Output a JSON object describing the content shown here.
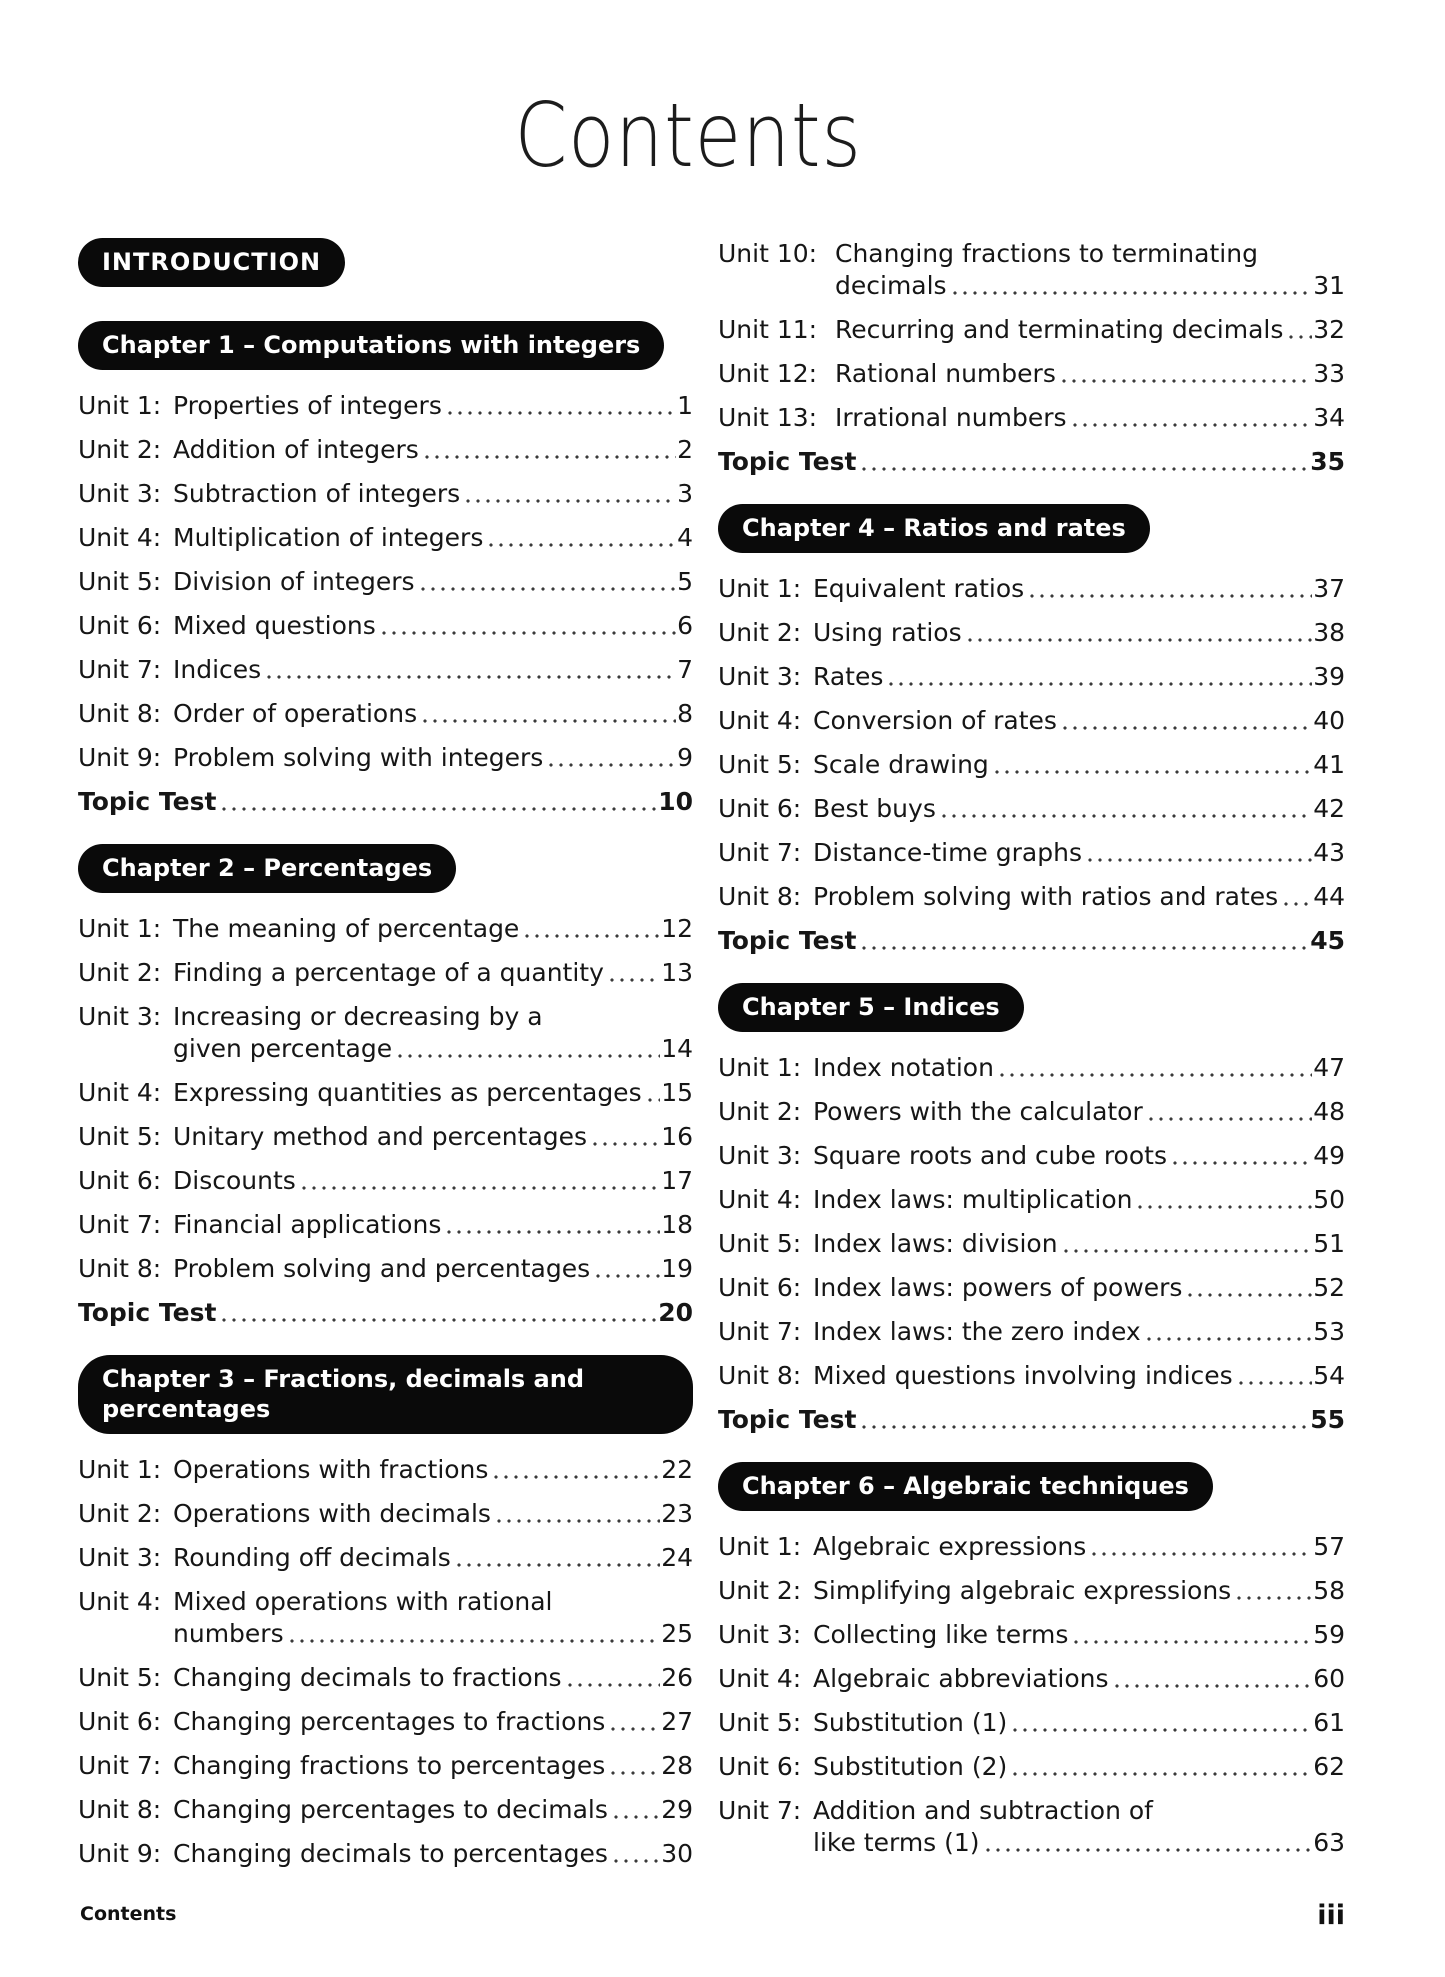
{
  "page": {
    "title": "Contents"
  },
  "footer": {
    "left": "Contents",
    "right": "iii"
  },
  "accent_color": "#0a0a0a",
  "columns": [
    {
      "blocks": [
        {
          "type": "pill",
          "style": "intro",
          "label": "INTRODUCTION"
        },
        {
          "type": "pill",
          "label": "Chapter 1 – Computations with integers"
        },
        {
          "type": "entries",
          "items": [
            {
              "label": "Unit 1:",
              "lines": [
                "Properties of integers"
              ],
              "page": "1"
            },
            {
              "label": "Unit 2:",
              "lines": [
                "Addition of integers"
              ],
              "page": "2"
            },
            {
              "label": "Unit 3:",
              "lines": [
                "Subtraction of integers"
              ],
              "page": "3"
            },
            {
              "label": "Unit 4:",
              "lines": [
                "Multiplication of integers"
              ],
              "page": "4"
            },
            {
              "label": "Unit 5:",
              "lines": [
                "Division of integers"
              ],
              "page": "5"
            },
            {
              "label": "Unit 6:",
              "lines": [
                "Mixed questions"
              ],
              "page": "6"
            },
            {
              "label": "Unit 7:",
              "lines": [
                "Indices"
              ],
              "page": "7"
            },
            {
              "label": "Unit 8:",
              "lines": [
                "Order of operations"
              ],
              "page": "8"
            },
            {
              "label": "Unit 9:",
              "lines": [
                "Problem solving with integers"
              ],
              "page": "9"
            },
            {
              "label": "",
              "lines": [
                "Topic Test"
              ],
              "page": "10",
              "bold": true
            }
          ]
        },
        {
          "type": "pill",
          "label": "Chapter 2 – Percentages"
        },
        {
          "type": "entries",
          "items": [
            {
              "label": "Unit 1:",
              "lines": [
                "The meaning of percentage"
              ],
              "page": "12"
            },
            {
              "label": "Unit 2:",
              "lines": [
                "Finding a percentage of a quantity"
              ],
              "page": "13"
            },
            {
              "label": "Unit 3:",
              "lines": [
                "Increasing or decreasing by a",
                "given percentage"
              ],
              "page": "14"
            },
            {
              "label": "Unit 4:",
              "lines": [
                "Expressing quantities as percentages"
              ],
              "page": "15"
            },
            {
              "label": "Unit 5:",
              "lines": [
                "Unitary method and percentages"
              ],
              "page": "16"
            },
            {
              "label": "Unit 6:",
              "lines": [
                "Discounts"
              ],
              "page": "17"
            },
            {
              "label": "Unit 7:",
              "lines": [
                "Financial applications"
              ],
              "page": "18"
            },
            {
              "label": "Unit 8:",
              "lines": [
                "Problem solving and percentages"
              ],
              "page": "19"
            },
            {
              "label": "",
              "lines": [
                "Topic Test"
              ],
              "page": "20",
              "bold": true
            }
          ]
        },
        {
          "type": "pill",
          "label": "Chapter 3 – Fractions, decimals and percentages"
        },
        {
          "type": "entries",
          "items": [
            {
              "label": "Unit 1:",
              "lines": [
                "Operations with fractions"
              ],
              "page": "22"
            },
            {
              "label": "Unit 2:",
              "lines": [
                "Operations with decimals"
              ],
              "page": "23"
            },
            {
              "label": "Unit 3:",
              "lines": [
                "Rounding off decimals"
              ],
              "page": "24"
            },
            {
              "label": "Unit 4:",
              "lines": [
                "Mixed operations with rational",
                "numbers"
              ],
              "page": "25"
            },
            {
              "label": "Unit 5:",
              "lines": [
                "Changing decimals to fractions"
              ],
              "page": "26"
            },
            {
              "label": "Unit 6:",
              "lines": [
                "Changing percentages to fractions"
              ],
              "page": "27"
            },
            {
              "label": "Unit 7:",
              "lines": [
                "Changing fractions to percentages"
              ],
              "page": "28"
            },
            {
              "label": "Unit 8:",
              "lines": [
                "Changing percentages to decimals"
              ],
              "page": "29"
            },
            {
              "label": "Unit 9:",
              "lines": [
                "Changing decimals to percentages"
              ],
              "page": "30"
            }
          ]
        }
      ]
    },
    {
      "blocks": [
        {
          "type": "entries",
          "items": [
            {
              "label": "Unit 10:",
              "lines": [
                "Changing fractions to terminating",
                "decimals"
              ],
              "page": "31"
            },
            {
              "label": "Unit 11:",
              "lines": [
                "Recurring and terminating decimals"
              ],
              "page": "32"
            },
            {
              "label": "Unit 12:",
              "lines": [
                "Rational numbers"
              ],
              "page": "33"
            },
            {
              "label": "Unit 13:",
              "lines": [
                "Irrational numbers"
              ],
              "page": "34"
            },
            {
              "label": "",
              "lines": [
                "Topic Test"
              ],
              "page": "35",
              "bold": true
            }
          ]
        },
        {
          "type": "pill",
          "label": "Chapter 4 – Ratios and rates"
        },
        {
          "type": "entries",
          "items": [
            {
              "label": "Unit 1:",
              "lines": [
                "Equivalent ratios"
              ],
              "page": "37"
            },
            {
              "label": "Unit 2:",
              "lines": [
                "Using ratios"
              ],
              "page": "38"
            },
            {
              "label": "Unit 3:",
              "lines": [
                "Rates"
              ],
              "page": "39"
            },
            {
              "label": "Unit 4:",
              "lines": [
                "Conversion of rates"
              ],
              "page": "40"
            },
            {
              "label": "Unit 5:",
              "lines": [
                "Scale drawing"
              ],
              "page": "41"
            },
            {
              "label": "Unit 6:",
              "lines": [
                "Best buys"
              ],
              "page": "42"
            },
            {
              "label": "Unit 7:",
              "lines": [
                "Distance-time graphs"
              ],
              "page": "43"
            },
            {
              "label": "Unit 8:",
              "lines": [
                "Problem solving with ratios and rates"
              ],
              "page": "44"
            },
            {
              "label": "",
              "lines": [
                "Topic Test"
              ],
              "page": "45",
              "bold": true
            }
          ]
        },
        {
          "type": "pill",
          "label": "Chapter 5 – Indices"
        },
        {
          "type": "entries",
          "items": [
            {
              "label": "Unit 1:",
              "lines": [
                "Index notation"
              ],
              "page": "47"
            },
            {
              "label": "Unit 2:",
              "lines": [
                "Powers with the calculator"
              ],
              "page": "48"
            },
            {
              "label": "Unit 3:",
              "lines": [
                "Square roots and cube roots"
              ],
              "page": "49"
            },
            {
              "label": "Unit 4:",
              "lines": [
                "Index laws: multiplication"
              ],
              "page": "50"
            },
            {
              "label": "Unit 5:",
              "lines": [
                "Index laws: division"
              ],
              "page": "51"
            },
            {
              "label": "Unit 6:",
              "lines": [
                "Index laws: powers of powers"
              ],
              "page": "52"
            },
            {
              "label": "Unit 7:",
              "lines": [
                "Index laws: the zero index"
              ],
              "page": "53"
            },
            {
              "label": "Unit 8:",
              "lines": [
                "Mixed questions involving indices"
              ],
              "page": "54"
            },
            {
              "label": "",
              "lines": [
                "Topic Test"
              ],
              "page": "55",
              "bold": true
            }
          ]
        },
        {
          "type": "pill",
          "label": "Chapter 6 – Algebraic techniques"
        },
        {
          "type": "entries",
          "items": [
            {
              "label": "Unit 1:",
              "lines": [
                "Algebraic expressions"
              ],
              "page": "57"
            },
            {
              "label": "Unit 2:",
              "lines": [
                "Simplifying algebraic expressions"
              ],
              "page": "58"
            },
            {
              "label": "Unit 3:",
              "lines": [
                "Collecting like terms"
              ],
              "page": "59"
            },
            {
              "label": "Unit 4:",
              "lines": [
                "Algebraic abbreviations"
              ],
              "page": "60"
            },
            {
              "label": "Unit 5:",
              "lines": [
                "Substitution (1)"
              ],
              "page": "61"
            },
            {
              "label": "Unit 6:",
              "lines": [
                "Substitution (2)"
              ],
              "page": "62"
            },
            {
              "label": "Unit 7:",
              "lines": [
                "Addition and subtraction of",
                "like terms (1)"
              ],
              "page": "63"
            }
          ]
        }
      ]
    }
  ]
}
